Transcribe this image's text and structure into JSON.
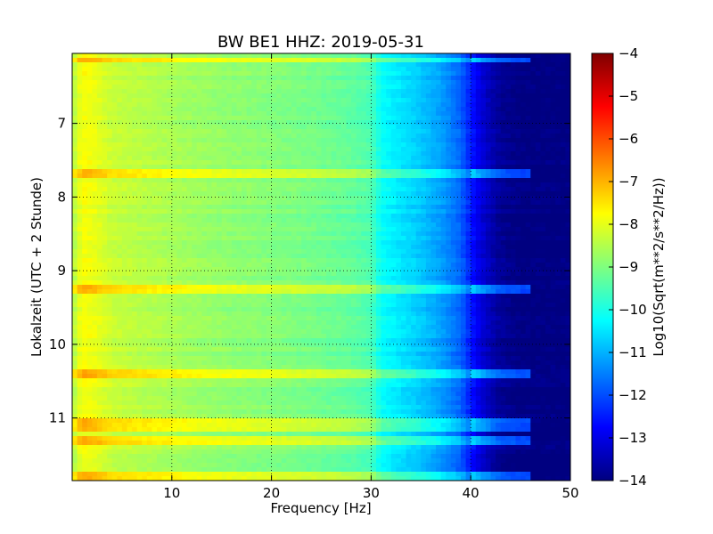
{
  "chart_data": {
    "type": "heatmap",
    "title": "BW BE1 HHZ: 2019-05-31",
    "xlabel": "Frequency [Hz]",
    "ylabel": "Lokalzeit (UTC + 2 Stunde)",
    "xlim": [
      0,
      50
    ],
    "ylim": [
      11.85,
      6.05
    ],
    "y_inverted": true,
    "grid": true,
    "colormap": "jet",
    "x_ticks": [
      10,
      20,
      30,
      40,
      50
    ],
    "x_tick_labels": [
      "10",
      "20",
      "30",
      "40",
      "50"
    ],
    "y_ticks": [
      7,
      8,
      9,
      10,
      11
    ],
    "y_tick_labels": [
      "7",
      "8",
      "9",
      "10",
      "11"
    ],
    "colorbar": {
      "label": "Log10(Sqrt(m**2/s**2/Hz))",
      "range": [
        -14,
        -4
      ],
      "ticks": [
        -4,
        -5,
        -6,
        -7,
        -8,
        -9,
        -10,
        -11,
        -12,
        -13,
        -14
      ],
      "tick_labels": [
        "−4",
        "−5",
        "−6",
        "−7",
        "−8",
        "−9",
        "−10",
        "−11",
        "−12",
        "−13",
        "−14"
      ]
    },
    "spectrum_profile": {
      "frequency_hz": [
        0,
        1,
        2,
        4,
        8,
        12,
        16,
        20,
        24,
        28,
        30,
        31,
        33,
        35,
        37,
        39,
        40,
        41,
        42,
        43,
        44,
        45,
        47,
        50
      ],
      "log10_amplitude": [
        -8.6,
        -7.8,
        -7.9,
        -8.3,
        -8.5,
        -8.7,
        -8.85,
        -8.95,
        -9.1,
        -9.3,
        -9.5,
        -10.2,
        -10.5,
        -10.8,
        -11.2,
        -11.8,
        -12.5,
        -13.1,
        -13.5,
        -13.8,
        -13.9,
        -14.0,
        -14.0,
        -14.0
      ]
    },
    "event_bands_hours": [
      6.15,
      7.67,
      9.25,
      10.4,
      11.05,
      11.15,
      11.3,
      11.78
    ],
    "colors": {
      "jet_stops": [
        "#00007f",
        "#0000ff",
        "#007fff",
        "#00ffff",
        "#7fff7f",
        "#ffff00",
        "#ff7f00",
        "#ff0000",
        "#7f0000"
      ]
    }
  }
}
